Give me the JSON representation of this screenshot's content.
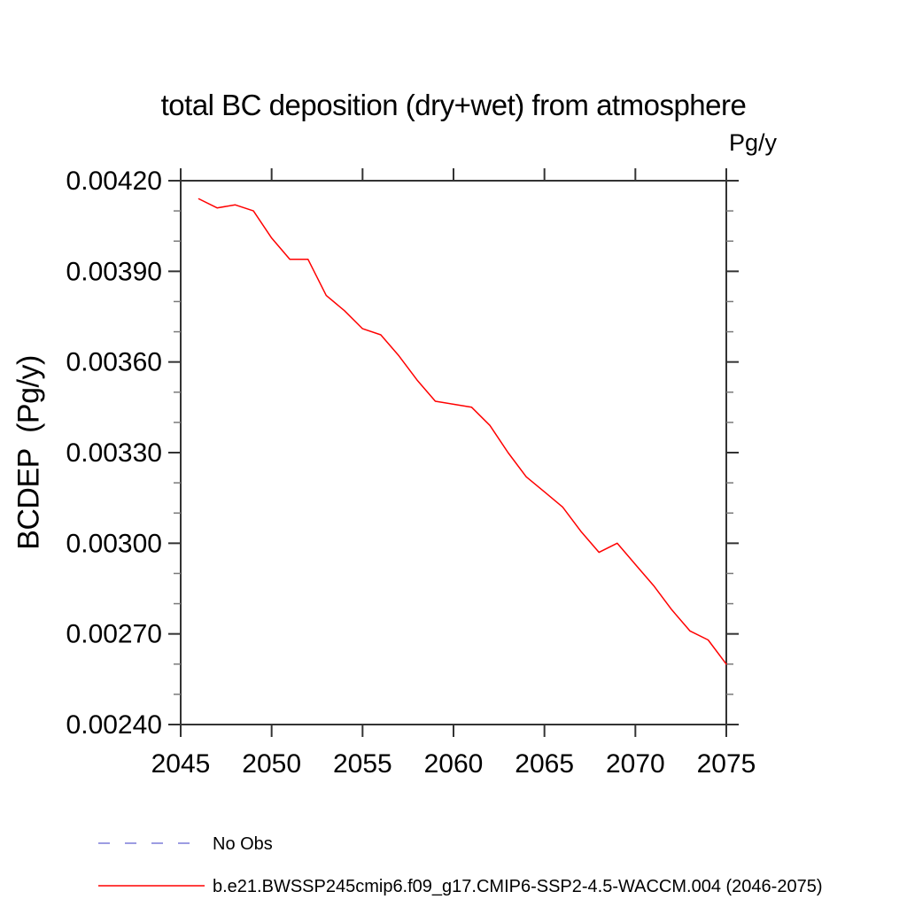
{
  "title": "total BC deposition (dry+wet) from atmosphere",
  "units_label": "Pg/y",
  "y_axis_title": "BCDEP  (Pg/y)",
  "colors": {
    "series_red": "#ff0000",
    "no_obs_blue": "#7b7bd9",
    "axis": "#333333",
    "minor_tick": "#7a7a7a"
  },
  "legend": {
    "items": [
      {
        "label": "No Obs",
        "color": "#7b7bd9",
        "style": "dashed"
      },
      {
        "label": "b.e21.BWSSP245cmip6.f09_g17.CMIP6-SSP2-4.5-WACCM.004 (2046-2075)",
        "color": "#ff0000",
        "style": "solid"
      }
    ]
  },
  "chart_data": {
    "type": "line",
    "title": "total BC deposition (dry+wet) from atmosphere",
    "xlabel": "",
    "ylabel": "BCDEP (Pg/y)",
    "units": "Pg/y",
    "grid": false,
    "legend_position": "bottom-left",
    "x_range": [
      2045,
      2075
    ],
    "y_range": [
      0.0024,
      0.0042
    ],
    "x_ticks": [
      2045,
      2050,
      2055,
      2060,
      2065,
      2070,
      2075
    ],
    "y_ticks": [
      0.0024,
      0.0027,
      0.003,
      0.0033,
      0.0036,
      0.0039,
      0.0042
    ],
    "y_tick_labels": [
      "0.00240",
      "0.00270",
      "0.00300",
      "0.00330",
      "0.00360",
      "0.00390",
      "0.00420"
    ],
    "y_minor_step": 0.0001,
    "series": [
      {
        "name": "b.e21.BWSSP245cmip6.f09_g17.CMIP6-SSP2-4.5-WACCM.004 (2046-2075)",
        "color": "#ff0000",
        "x": [
          2046,
          2047,
          2048,
          2049,
          2050,
          2051,
          2052,
          2053,
          2054,
          2055,
          2056,
          2057,
          2058,
          2059,
          2060,
          2061,
          2062,
          2063,
          2064,
          2065,
          2066,
          2067,
          2068,
          2069,
          2070,
          2071,
          2072,
          2073,
          2074,
          2075
        ],
        "values": [
          0.00414,
          0.00411,
          0.00412,
          0.0041,
          0.00401,
          0.00394,
          0.00394,
          0.00382,
          0.00377,
          0.00371,
          0.00369,
          0.00362,
          0.00354,
          0.00347,
          0.00346,
          0.00345,
          0.00339,
          0.0033,
          0.00322,
          0.00317,
          0.00312,
          0.00304,
          0.00297,
          0.003,
          0.00293,
          0.00286,
          0.00278,
          0.00271,
          0.00268,
          0.0026
        ]
      }
    ]
  }
}
